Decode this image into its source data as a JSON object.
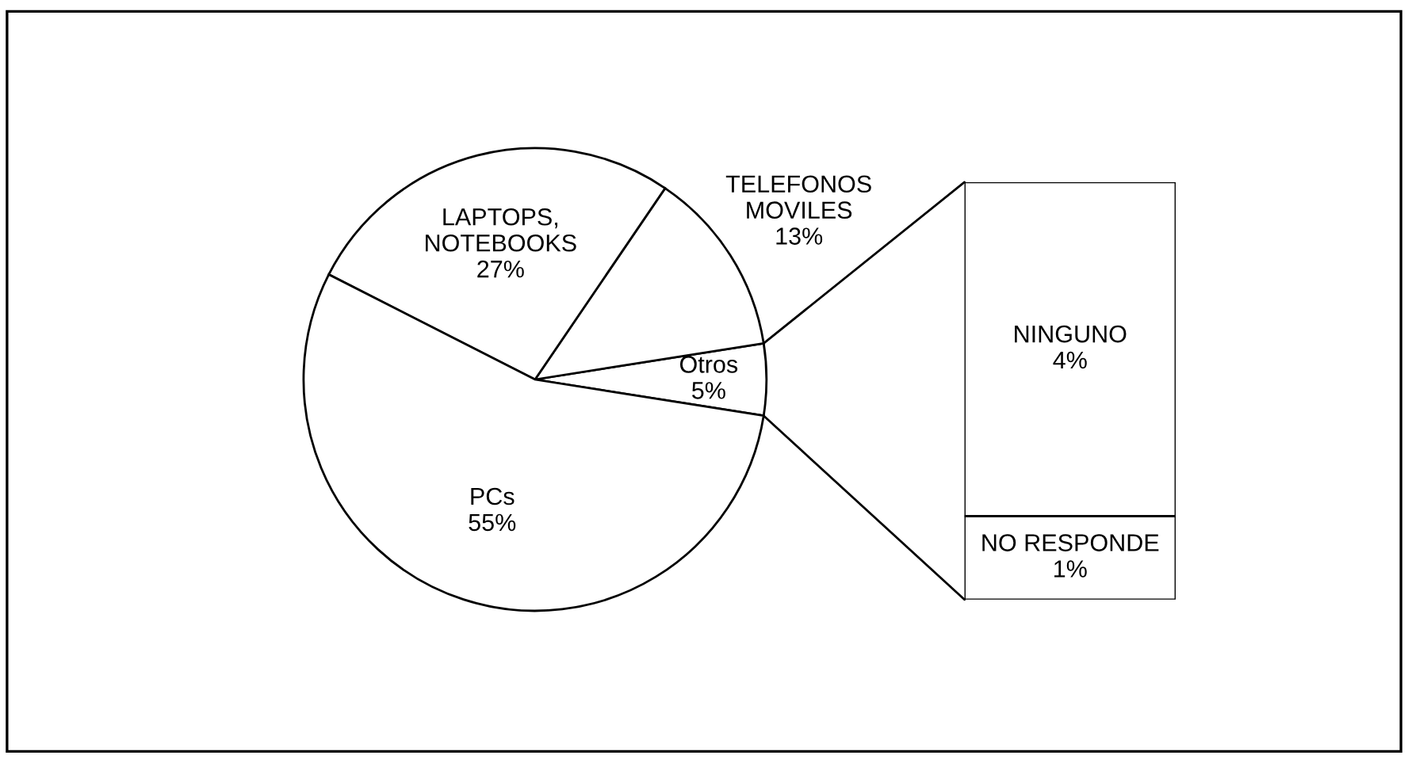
{
  "chart_data": [
    {
      "type": "pie",
      "categories": [
        "Otros",
        "TELEFONOS\nMOVILES",
        "LAPTOPS,\nNOTEBOOKS",
        "PCs"
      ],
      "values": [
        5,
        13,
        27,
        55
      ],
      "value_labels": [
        "5%",
        "13%",
        "27%",
        "55%"
      ],
      "colors": [
        "#ffffff",
        "#ffffff",
        "#ffffff",
        "#ffffff"
      ],
      "legend": false
    },
    {
      "type": "bar",
      "stacked": true,
      "categories": [
        null
      ],
      "series": [
        {
          "name": "NO RESPONDE",
          "color": "#ffffff",
          "values": [
            1
          ],
          "value_labels": [
            "1%"
          ]
        },
        {
          "name": "NINGUNO",
          "color": "#ffffff",
          "values": [
            4
          ],
          "value_labels": [
            "4%"
          ]
        }
      ],
      "legend": false
    }
  ]
}
